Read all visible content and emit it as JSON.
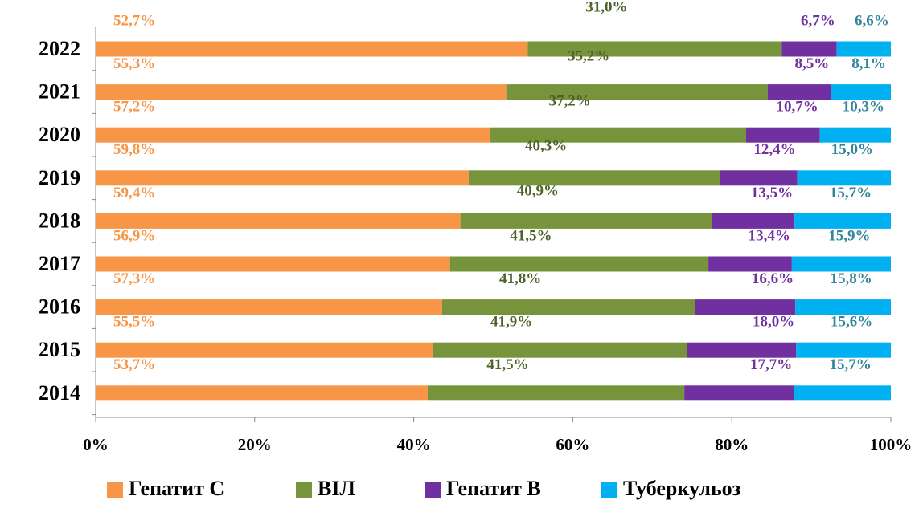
{
  "chart_data": {
    "type": "bar",
    "orientation": "horizontal",
    "stacking": "percent",
    "categories": [
      "2022",
      "2021",
      "2020",
      "2019",
      "2018",
      "2017",
      "2016",
      "2015",
      "2014"
    ],
    "series": [
      {
        "name": "Гепатит С",
        "color": "#f79646",
        "label_color": "#f79646",
        "values": [
          52.7,
          55.3,
          57.2,
          59.8,
          59.4,
          56.9,
          57.3,
          55.5,
          53.7
        ],
        "value_labels": [
          "52,7%",
          "55,3%",
          "57,2%",
          "59,8%",
          "59,4%",
          "56,9%",
          "57,3%",
          "55,5%",
          "53,7%"
        ]
      },
      {
        "name": "ВІЛ",
        "color": "#77933c",
        "label_color": "#4f6228",
        "values": [
          31.0,
          35.2,
          37.2,
          40.3,
          40.9,
          41.5,
          41.8,
          41.9,
          41.5
        ],
        "value_labels": [
          "31,0%",
          "35,2%",
          "37,2%",
          "40,3%",
          "40,9%",
          "41,5%",
          "41,8%",
          "41,9%",
          "41,5%"
        ]
      },
      {
        "name": "Гепатит В",
        "color": "#7030a0",
        "label_color": "#7030a0",
        "values": [
          6.7,
          8.5,
          10.7,
          12.4,
          13.5,
          13.4,
          16.6,
          18.0,
          17.7
        ],
        "value_labels": [
          "6,7%",
          "8,5%",
          "10,7%",
          "12,4%",
          "13,5%",
          "13,4%",
          "16,6%",
          "18,0%",
          "17,7%"
        ]
      },
      {
        "name": "Туберкульоз",
        "color": "#00b0f0",
        "label_color": "#31859c",
        "values": [
          6.6,
          8.1,
          10.3,
          15.0,
          15.7,
          15.9,
          15.8,
          15.6,
          15.7
        ],
        "value_labels": [
          "6,6%",
          "8,1%",
          "10,3%",
          "15,0%",
          "15,7%",
          "15,9%",
          "15,8%",
          "15,6%",
          "15,7%"
        ]
      }
    ],
    "xlim": [
      0,
      100
    ],
    "xticks": [
      {
        "value": 0,
        "label": "0%"
      },
      {
        "value": 20,
        "label": "20%"
      },
      {
        "value": 40,
        "label": "40%"
      },
      {
        "value": 60,
        "label": "60%"
      },
      {
        "value": 80,
        "label": "80%"
      },
      {
        "value": 100,
        "label": "100%"
      }
    ],
    "legend": "bottom"
  }
}
